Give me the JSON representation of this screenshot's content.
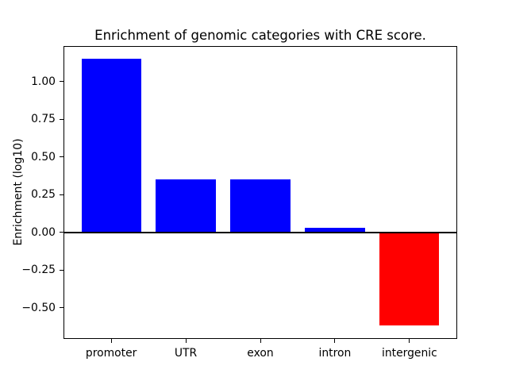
{
  "figure": {
    "background": "#ffffff"
  },
  "chart_data": {
    "type": "bar",
    "title": "Enrichment of genomic categories with CRE score.",
    "xlabel": "",
    "ylabel": "Enrichment (log10)",
    "categories": [
      "promoter",
      "UTR",
      "exon",
      "intron",
      "intergenic"
    ],
    "values": [
      1.15,
      0.35,
      0.35,
      0.03,
      -0.62
    ],
    "bar_colors": [
      "#0000ff",
      "#0000ff",
      "#0000ff",
      "#0000ff",
      "#ff0000"
    ],
    "positive_color": "#0000ff",
    "negative_color": "#ff0000",
    "bar_width_fraction": 0.8,
    "xlim": [
      -0.64,
      4.64
    ],
    "ylim": [
      -0.7085,
      1.2385
    ],
    "yticks": [
      {
        "value": 1.0,
        "label": "1.00"
      },
      {
        "value": 0.75,
        "label": "0.75"
      },
      {
        "value": 0.5,
        "label": "0.50"
      },
      {
        "value": 0.25,
        "label": "0.25"
      },
      {
        "value": 0.0,
        "label": "0.00"
      },
      {
        "value": -0.25,
        "label": "−0.25"
      },
      {
        "value": -0.5,
        "label": "−0.50"
      }
    ],
    "zero_line": {
      "value": 0,
      "color": "#000000",
      "thickness_px": 2
    },
    "grid": false,
    "legend": null,
    "axis_color": "#000000",
    "text_color": "#000000"
  }
}
